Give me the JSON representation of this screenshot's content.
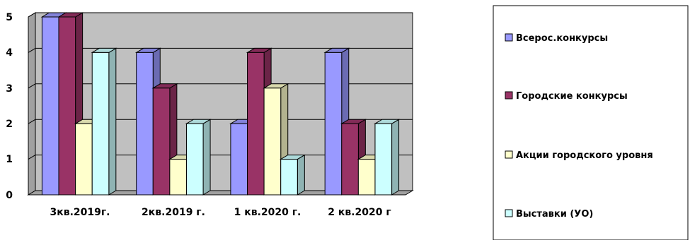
{
  "chart_data": {
    "type": "bar",
    "categories": [
      "3кв.2019г.",
      "2кв.2019 г.",
      "1 кв.2020 г.",
      "2 кв.2020 г"
    ],
    "series": [
      {
        "name": "Всерос.конкурсы",
        "values": [
          5,
          4,
          2,
          4
        ]
      },
      {
        "name": "Городские конкурсы",
        "values": [
          5,
          3,
          4,
          2
        ]
      },
      {
        "name": "Акции городского уровня",
        "values": [
          2,
          1,
          3,
          1
        ]
      },
      {
        "name": "Выставки (УО)",
        "values": [
          4,
          2,
          1,
          2
        ]
      }
    ],
    "y_ticks": [
      "0",
      "1",
      "2",
      "3",
      "4",
      "5"
    ],
    "ylim": [
      0,
      5
    ],
    "grid": true,
    "legend_position": "right",
    "colors": {
      "series": [
        "#9999ff",
        "#993366",
        "#ffffcc",
        "#ccffff"
      ],
      "plot_background": "#c0c0c0"
    }
  }
}
